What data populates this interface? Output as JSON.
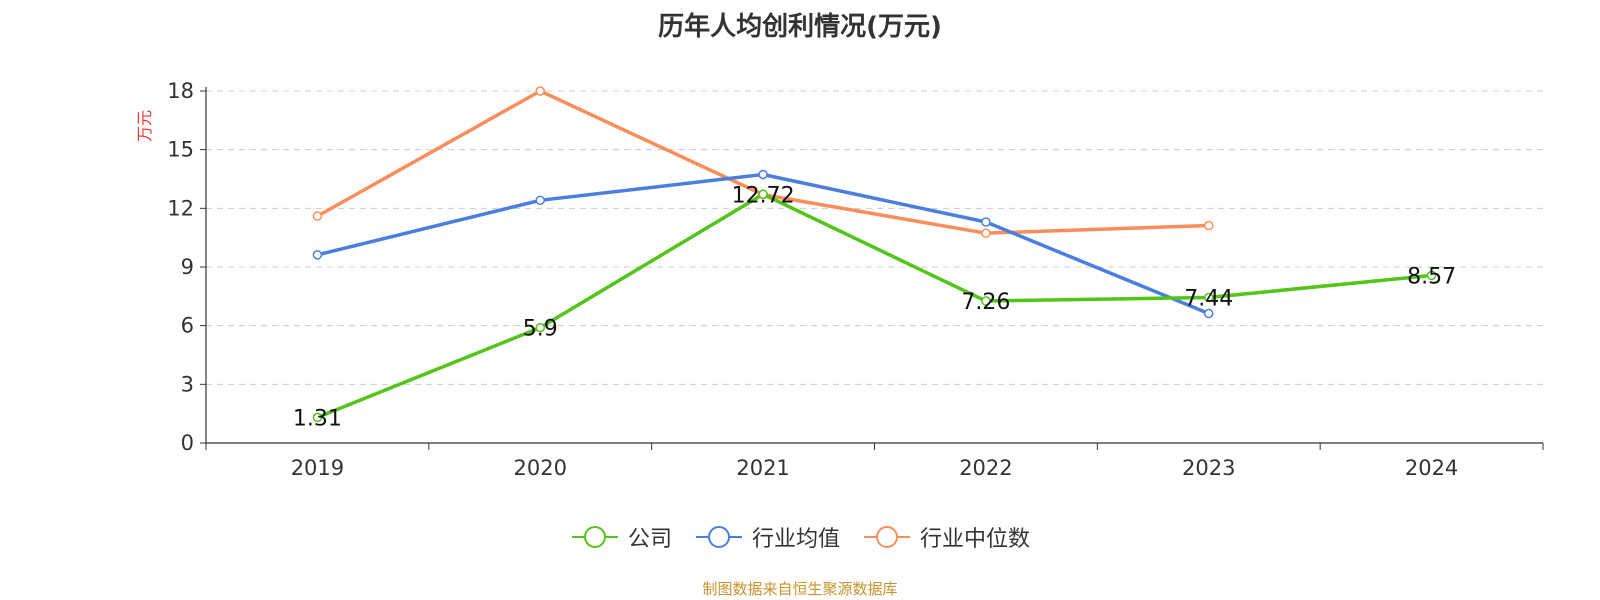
{
  "chart_data": {
    "type": "line",
    "title": "历年人均创利情况(万元)",
    "ylabel": "万元",
    "xlabel": "",
    "categories": [
      "2019",
      "2020",
      "2021",
      "2022",
      "2023",
      "2024"
    ],
    "ylim": [
      0,
      18
    ],
    "yticks": [
      0,
      3,
      6,
      9,
      12,
      15,
      18
    ],
    "grid": true,
    "legend_position": "bottom",
    "series": [
      {
        "name": "公司",
        "color": "#52c41a",
        "values": [
          1.31,
          5.9,
          12.72,
          7.26,
          7.44,
          8.57
        ],
        "labels": [
          "1.31",
          "5.9",
          "12.72",
          "7.26",
          "7.44",
          "8.57"
        ]
      },
      {
        "name": "行业均值",
        "color": "#4a7fe0",
        "values": [
          9.62,
          12.41,
          13.73,
          11.3,
          6.62,
          null
        ]
      },
      {
        "name": "行业中位数",
        "color": "#f98e5b",
        "values": [
          11.6,
          18.0,
          12.7,
          10.73,
          11.12,
          null
        ]
      }
    ]
  },
  "source_text": "制图数据来自恒生聚源数据库"
}
